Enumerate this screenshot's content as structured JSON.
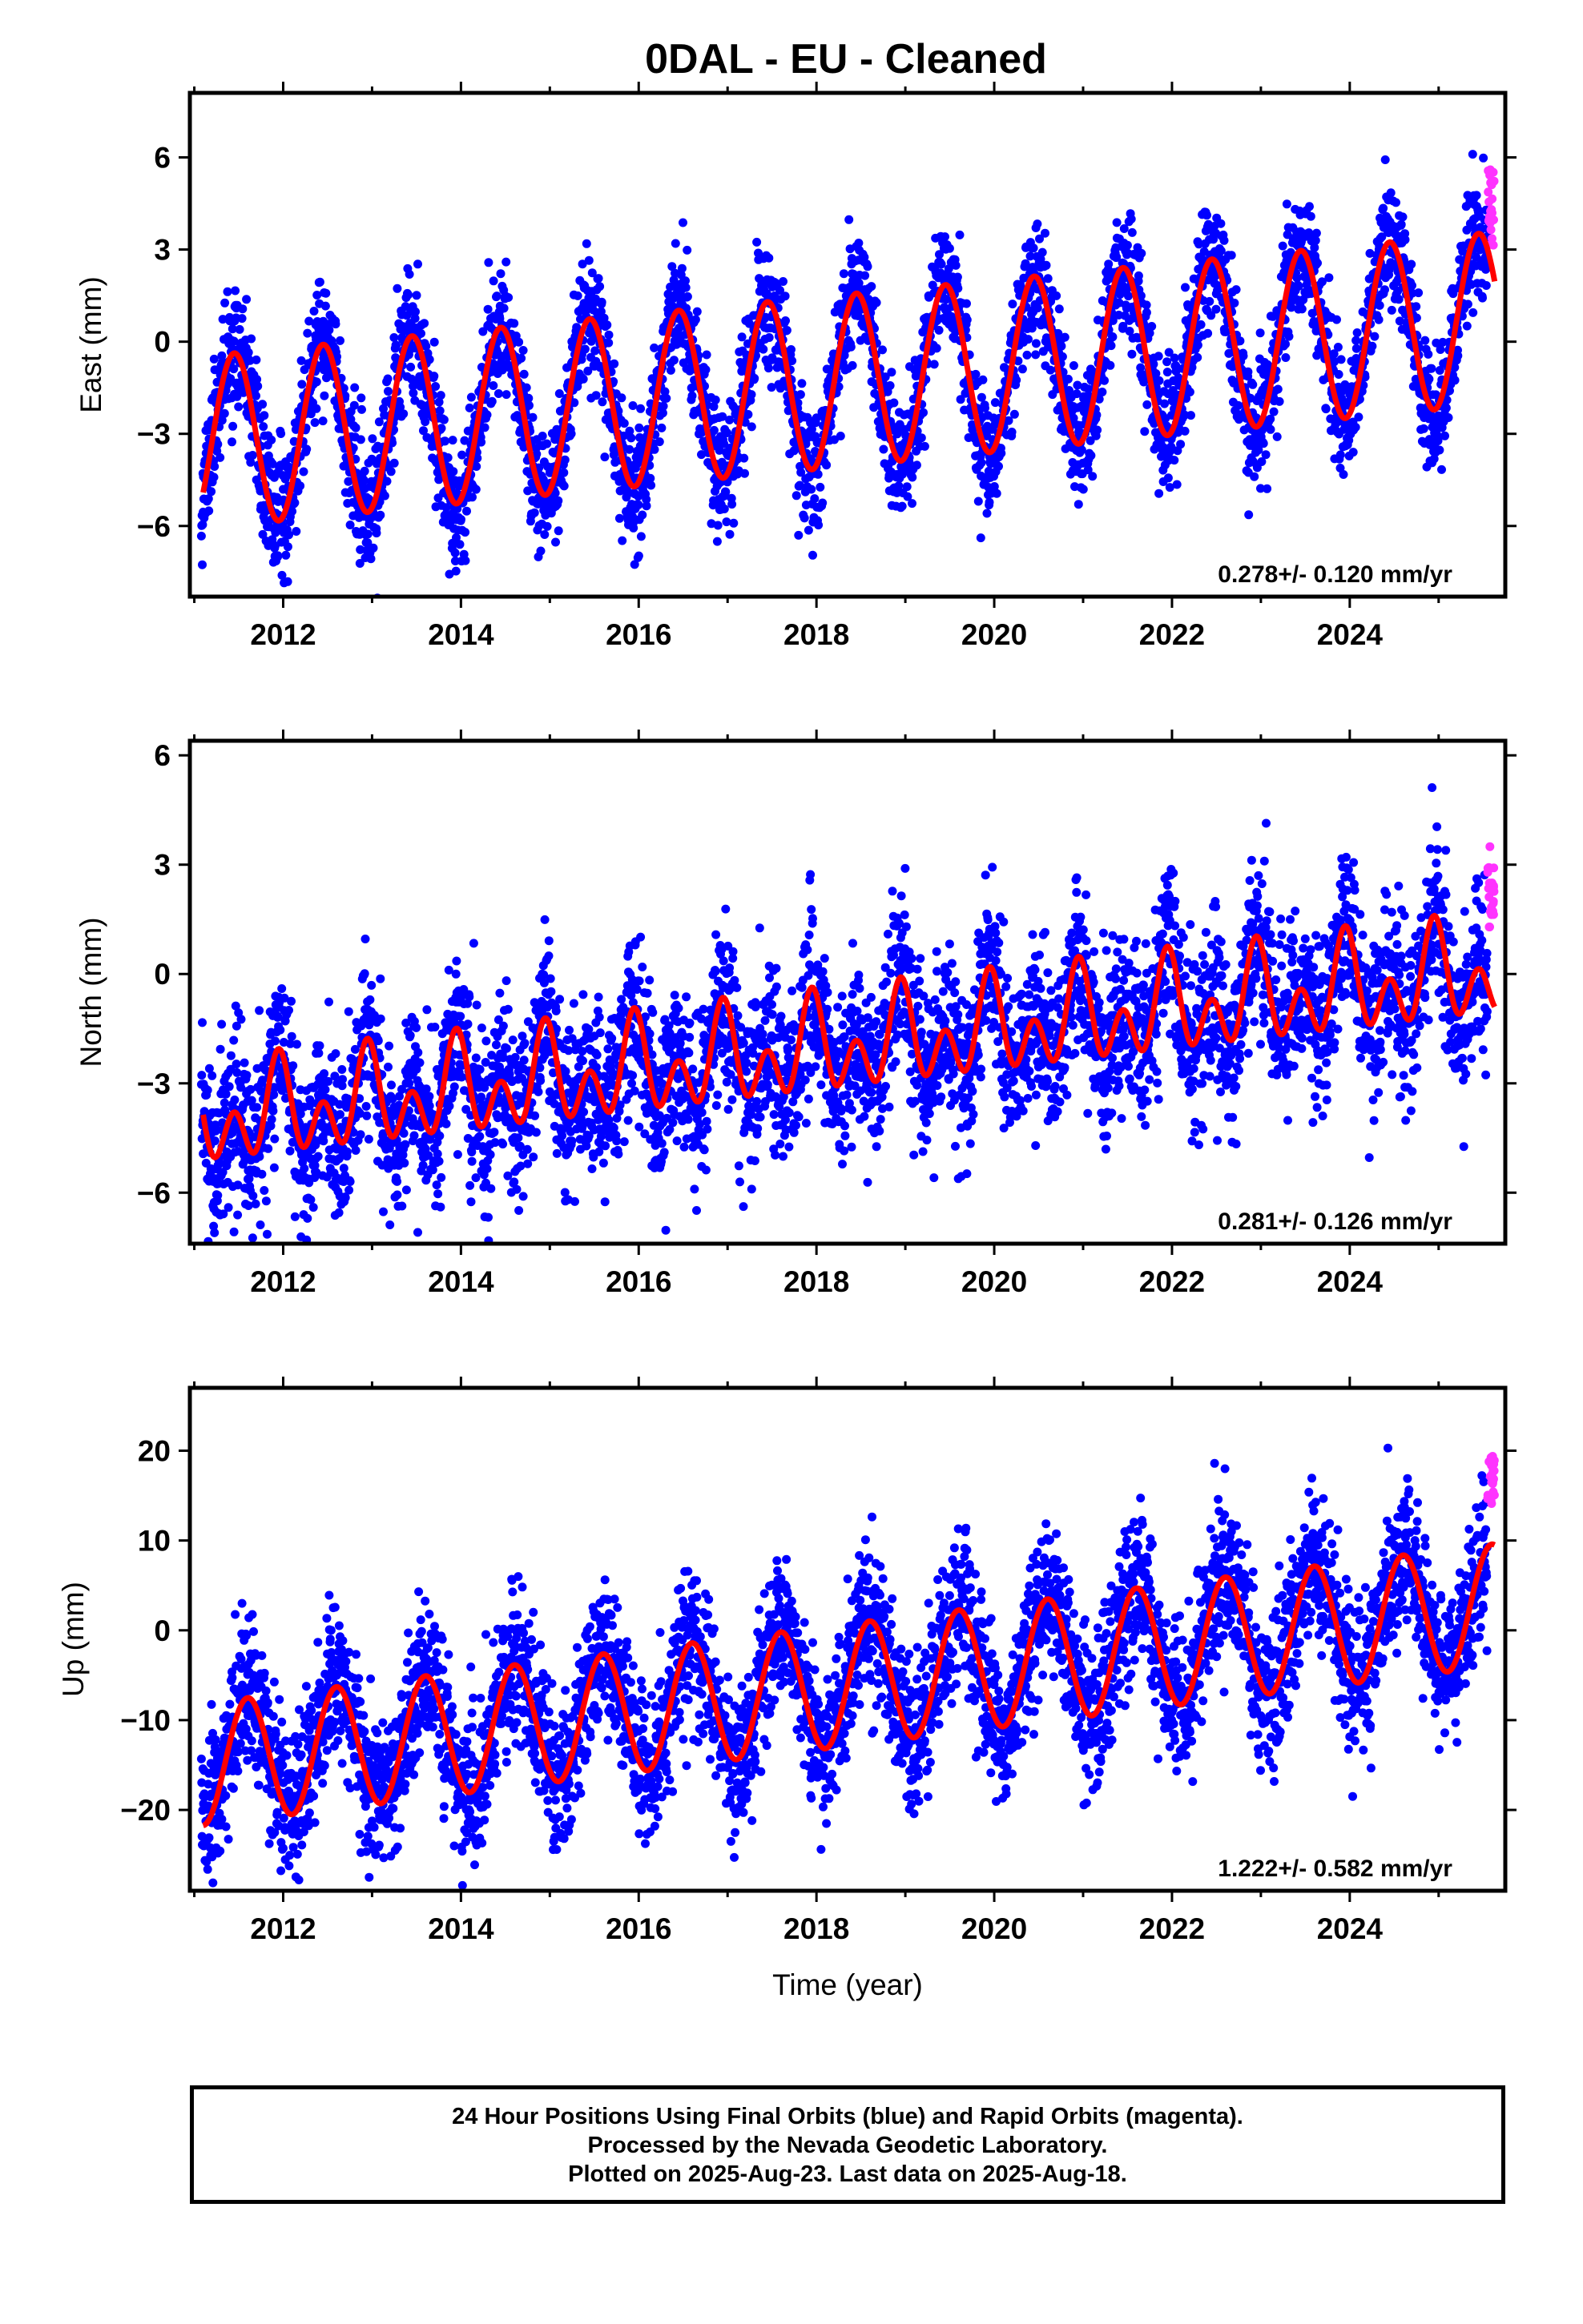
{
  "title": "0DAL  - EU - Cleaned",
  "caption": {
    "line1": "24 Hour Positions Using Final Orbits (blue) and Rapid Orbits (magenta).",
    "line2": "Processed by the Nevada Geodetic Laboratory.",
    "line3": "Plotted on 2025-Aug-23. Last data on 2025-Aug-18."
  },
  "colors": {
    "final_orbits": "#0000ff",
    "rapid_orbits": "#ff33ff",
    "model_fit": "#ff0000",
    "frame": "#000000"
  },
  "chart_data": [
    {
      "type": "scatter",
      "panel": "east",
      "ylabel": "East (mm)",
      "xlabel": "",
      "xlim": [
        2010.95,
        2025.75
      ],
      "ylim": [
        -8.3,
        8.1
      ],
      "x_ticks": [
        2012,
        2014,
        2016,
        2018,
        2020,
        2022,
        2024
      ],
      "y_ticks": [
        -6,
        -3,
        0,
        3,
        6
      ],
      "y_tick_labels": [
        "−6",
        "−3",
        "0",
        "3",
        "6"
      ],
      "rate_label": "0.278+/- 0.120 mm/yr",
      "model": {
        "trend_mm_per_yr": 0.278,
        "offset_mm": -1.35,
        "annual_amp": 2.8,
        "annual_peak": 0.45,
        "semiannual_amp": 0.0,
        "semiannual_peak": 0.0,
        "model_start": 2011.1,
        "model_end": 2025.63
      },
      "final_points": {
        "start": 2011.08,
        "end": 2025.55,
        "per_year": 300,
        "scatter_mm": 1.0,
        "seed": 11
      },
      "rapid_points": {
        "start": 2025.55,
        "end": 2025.63,
        "count": 24,
        "center_mm": 4.4,
        "spread_mm": 2.8,
        "seed": 21
      },
      "series": [
        {
          "name": "Final Orbits (blue)",
          "role": "final"
        },
        {
          "name": "Rapid Orbits (magenta)",
          "role": "rapid"
        }
      ]
    },
    {
      "type": "scatter",
      "panel": "north",
      "ylabel": "North (mm)",
      "xlabel": "",
      "xlim": [
        2010.95,
        2025.75
      ],
      "ylim": [
        -7.4,
        6.4
      ],
      "x_ticks": [
        2012,
        2014,
        2016,
        2018,
        2020,
        2022,
        2024
      ],
      "y_ticks": [
        -6,
        -3,
        0,
        3,
        6
      ],
      "y_tick_labels": [
        "−6",
        "−3",
        "0",
        "3",
        "6"
      ],
      "rate_label": "0.281+/- 0.126 mm/yr",
      "model": {
        "trend_mm_per_yr": 0.281,
        "offset_mm": -2.1,
        "annual_amp": 0.8,
        "annual_peak": 0.95,
        "semiannual_amp": 0.95,
        "semiannual_peak": 0.45,
        "model_start": 2011.1,
        "model_end": 2025.63
      },
      "final_points": {
        "start": 2011.08,
        "end": 2025.55,
        "per_year": 300,
        "scatter_mm": 1.15,
        "seed": 31
      },
      "rapid_points": {
        "start": 2025.55,
        "end": 2025.63,
        "count": 24,
        "center_mm": 2.4,
        "spread_mm": 2.4,
        "seed": 41
      },
      "series": [
        {
          "name": "Final Orbits (blue)",
          "role": "final"
        },
        {
          "name": "Rapid Orbits (magenta)",
          "role": "rapid"
        }
      ]
    },
    {
      "type": "scatter",
      "panel": "up",
      "ylabel": "Up (mm)",
      "xlabel": "Time (year)",
      "xlim": [
        2010.95,
        2025.75
      ],
      "ylim": [
        -29,
        27
      ],
      "x_ticks": [
        2012,
        2014,
        2016,
        2018,
        2020,
        2022,
        2024
      ],
      "y_ticks": [
        -20,
        -10,
        0,
        10,
        20
      ],
      "y_tick_labels": [
        "−20",
        "−10",
        "0",
        "10",
        "20"
      ],
      "rate_label": "1.222+/- 0.582 mm/yr",
      "model": {
        "trend_mm_per_yr": 1.222,
        "offset_mm": -6.5,
        "annual_amp": 6.8,
        "annual_peak": 0.6,
        "semiannual_amp": 0.0,
        "semiannual_peak": 0.0,
        "model_start": 2011.1,
        "model_end": 2025.63
      },
      "final_points": {
        "start": 2011.08,
        "end": 2025.55,
        "per_year": 300,
        "scatter_mm": 4.2,
        "seed": 51
      },
      "rapid_points": {
        "start": 2025.55,
        "end": 2025.63,
        "count": 24,
        "center_mm": 17.0,
        "spread_mm": 6.5,
        "seed": 61
      },
      "series": [
        {
          "name": "Final Orbits (blue)",
          "role": "final"
        },
        {
          "name": "Rapid Orbits (magenta)",
          "role": "rapid"
        }
      ]
    }
  ]
}
